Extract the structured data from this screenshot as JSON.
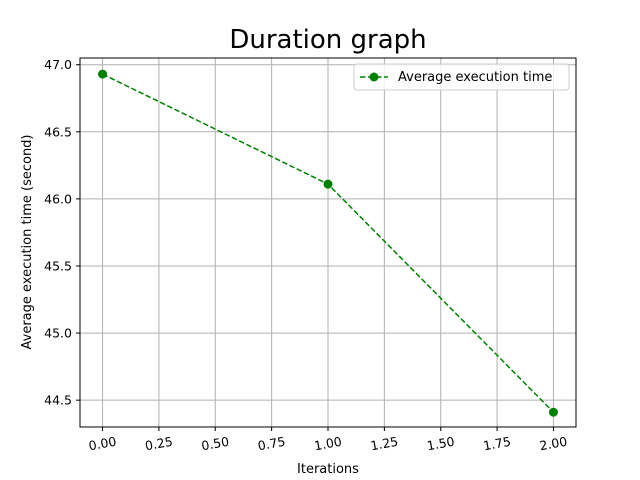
{
  "chart_data": {
    "type": "line",
    "title": "Duration graph",
    "xlabel": "Iterations",
    "ylabel": "Average execution time (second)",
    "x": [
      0,
      1,
      2
    ],
    "series": [
      {
        "name": "Average execution time",
        "values": [
          46.93,
          46.11,
          44.41
        ],
        "color": "#008000",
        "line_style": "dashed",
        "marker": "circle"
      }
    ],
    "xlim": [
      -0.1,
      2.1
    ],
    "ylim": [
      44.3,
      47.05
    ],
    "x_ticks": [
      0,
      0.25,
      0.5,
      0.75,
      1.0,
      1.25,
      1.5,
      1.75,
      2.0
    ],
    "x_tick_labels": [
      "0.00",
      "0.25",
      "0.50",
      "0.75",
      "1.00",
      "1.25",
      "1.50",
      "1.75",
      "2.00"
    ],
    "y_ticks": [
      44.5,
      45.0,
      45.5,
      46.0,
      46.5,
      47.0
    ],
    "y_tick_labels": [
      "44.5",
      "45.0",
      "45.5",
      "46.0",
      "46.5",
      "47.0"
    ],
    "grid": true,
    "legend_position": "top-right"
  }
}
